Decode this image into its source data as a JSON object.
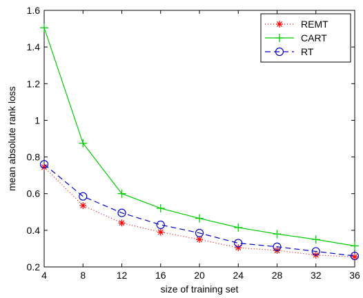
{
  "chart_data": {
    "type": "line",
    "title": "",
    "xlabel": "size of training set",
    "ylabel": "mean absolute rank loss",
    "xlim": [
      4,
      36
    ],
    "ylim": [
      0.2,
      1.6
    ],
    "xticks": [
      4,
      8,
      12,
      16,
      20,
      24,
      28,
      32,
      36
    ],
    "yticks": [
      0.2,
      0.4,
      0.6,
      0.8,
      1.0,
      1.2,
      1.4,
      1.6
    ],
    "ytick_labels": [
      "0.2",
      "0.4",
      "0.6",
      "0.8",
      "1",
      "1.2",
      "1.4",
      "1.6"
    ],
    "grid": false,
    "legend_position": "top-right",
    "x": [
      4,
      8,
      12,
      16,
      20,
      24,
      28,
      32,
      36
    ],
    "series": [
      {
        "name": "REMT",
        "color": "#ff0000",
        "line": "dotted",
        "marker": "asterisk",
        "values": [
          0.745,
          0.535,
          0.44,
          0.39,
          0.35,
          0.305,
          0.29,
          0.265,
          0.255
        ]
      },
      {
        "name": "CART",
        "color": "#00cc00",
        "line": "solid",
        "marker": "plus",
        "values": [
          1.505,
          0.875,
          0.6,
          0.52,
          0.465,
          0.415,
          0.38,
          0.35,
          0.315
        ]
      },
      {
        "name": "RT",
        "color": "#0000cc",
        "line": "dashed",
        "marker": "circle",
        "values": [
          0.76,
          0.585,
          0.495,
          0.43,
          0.385,
          0.33,
          0.31,
          0.285,
          0.26
        ]
      }
    ]
  }
}
